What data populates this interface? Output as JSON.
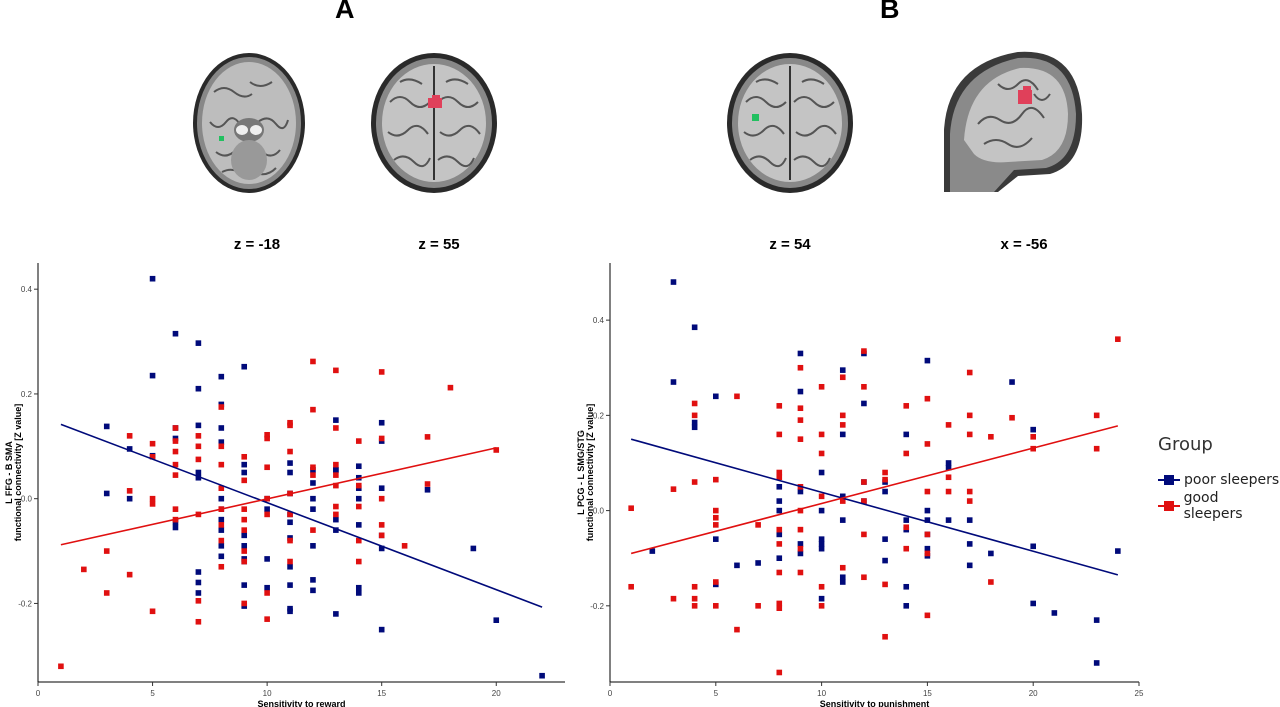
{
  "panels": [
    {
      "letter": "A",
      "slice_labels": [
        "z = -18",
        "z = 55"
      ]
    },
    {
      "letter": "B",
      "slice_labels": [
        "z = 54",
        "x = -56"
      ]
    }
  ],
  "legend": {
    "title": "Group",
    "entries": [
      {
        "label": "poor sleepers",
        "color": "#000a7a"
      },
      {
        "label": "good sleepers",
        "color": "#e01010"
      }
    ]
  },
  "chart_data": [
    {
      "type": "scatter",
      "title": "",
      "xlabel": "Sensitivity to reward",
      "ylabel": [
        "L FFG - B SMA",
        "functional connectivity [Z value]"
      ],
      "xlim": [
        0,
        23
      ],
      "ylim": [
        -0.35,
        0.45
      ],
      "xticks": [
        0,
        5,
        10,
        15,
        20
      ],
      "yticks": [
        -0.2,
        0.0,
        0.2,
        0.4
      ],
      "ytick_labels": [
        "-0.2",
        "0.0",
        "0.2",
        "0.4"
      ],
      "grid": false,
      "series": [
        {
          "name": "poor sleepers",
          "color": "#000a7a",
          "trend": [
            [
              1,
              0.142
            ],
            [
              22,
              -0.207
            ]
          ],
          "x": [
            3,
            3,
            4,
            4,
            5,
            5,
            5,
            6,
            6,
            6,
            6,
            6,
            7,
            7,
            7,
            7,
            7,
            7,
            7,
            7,
            8,
            8,
            8,
            8,
            8,
            8,
            8,
            8,
            8,
            8,
            9,
            9,
            9,
            9,
            9,
            9,
            9,
            9,
            9,
            10,
            10,
            10,
            10,
            11,
            11,
            11,
            11,
            11,
            11,
            11,
            11,
            11,
            11,
            12,
            12,
            12,
            12,
            12,
            12,
            12,
            13,
            13,
            13,
            13,
            13,
            13,
            14,
            14,
            14,
            14,
            14,
            14,
            14,
            15,
            15,
            15,
            15,
            15,
            15,
            17,
            19,
            20,
            22
          ],
          "y": [
            0.138,
            0.01,
            0.095,
            0.0,
            0.42,
            0.235,
            0.082,
            0.315,
            0.135,
            0.115,
            -0.045,
            -0.055,
            0.297,
            0.21,
            0.14,
            0.05,
            0.04,
            -0.14,
            -0.16,
            -0.18,
            0.233,
            0.18,
            0.135,
            0.108,
            0.0,
            -0.02,
            -0.04,
            -0.06,
            -0.09,
            -0.11,
            0.252,
            0.065,
            0.05,
            -0.07,
            -0.09,
            -0.115,
            -0.12,
            -0.165,
            -0.205,
            0.0,
            -0.02,
            -0.115,
            -0.17,
            0.068,
            0.05,
            0.01,
            -0.03,
            -0.045,
            -0.075,
            -0.13,
            -0.165,
            -0.21,
            -0.215,
            0.055,
            0.03,
            0.0,
            -0.02,
            -0.09,
            -0.155,
            -0.175,
            0.15,
            0.055,
            0.055,
            -0.04,
            -0.06,
            -0.22,
            0.062,
            0.04,
            0.02,
            0.0,
            -0.05,
            -0.17,
            -0.18,
            0.145,
            0.11,
            0.02,
            -0.07,
            -0.095,
            -0.25,
            0.017,
            -0.095,
            -0.232,
            -0.338
          ]
        },
        {
          "name": "good sleepers",
          "color": "#e01010",
          "trend": [
            [
              1,
              -0.088
            ],
            [
              20,
              0.097
            ]
          ],
          "x": [
            1,
            2,
            3,
            3,
            4,
            4,
            4,
            5,
            5,
            5,
            5,
            5,
            6,
            6,
            6,
            6,
            6,
            6,
            6,
            7,
            7,
            7,
            7,
            7,
            7,
            8,
            8,
            8,
            8,
            8,
            8,
            8,
            8,
            9,
            9,
            9,
            9,
            9,
            9,
            9,
            9,
            10,
            10,
            10,
            10,
            10,
            10,
            10,
            11,
            11,
            11,
            11,
            11,
            11,
            11,
            12,
            12,
            12,
            12,
            12,
            13,
            13,
            13,
            13,
            13,
            13,
            13,
            14,
            14,
            14,
            14,
            14,
            15,
            15,
            15,
            15,
            15,
            16,
            17,
            17,
            18,
            20
          ],
          "y": [
            -0.32,
            -0.135,
            -0.1,
            -0.18,
            0.12,
            0.015,
            -0.145,
            0.105,
            0.08,
            0.0,
            -0.01,
            -0.215,
            0.135,
            0.11,
            0.09,
            0.065,
            0.045,
            -0.02,
            -0.04,
            0.12,
            0.1,
            0.075,
            -0.03,
            -0.195,
            -0.235,
            0.175,
            0.1,
            0.065,
            0.02,
            -0.02,
            -0.05,
            -0.08,
            -0.13,
            0.08,
            0.035,
            -0.02,
            -0.04,
            -0.06,
            -0.1,
            -0.12,
            -0.2,
            0.122,
            0.115,
            0.06,
            0.0,
            -0.03,
            -0.18,
            -0.23,
            0.145,
            0.14,
            0.09,
            0.01,
            -0.03,
            -0.08,
            -0.12,
            0.262,
            0.17,
            0.06,
            0.045,
            -0.06,
            0.245,
            0.135,
            0.065,
            0.045,
            0.025,
            -0.015,
            -0.03,
            0.11,
            0.025,
            -0.015,
            -0.08,
            -0.12,
            0.242,
            0.115,
            0.0,
            -0.05,
            -0.07,
            -0.09,
            0.118,
            0.028,
            0.212,
            0.093
          ]
        }
      ]
    },
    {
      "type": "scatter",
      "title": "",
      "xlabel": "Sensitivity to punishment",
      "ylabel": [
        "L PCG - L SMG/STG",
        "functional connectivity [Z value]"
      ],
      "xlim": [
        0,
        25
      ],
      "ylim": [
        -0.36,
        0.52
      ],
      "xticks": [
        0,
        5,
        10,
        15,
        20,
        25
      ],
      "yticks": [
        -0.2,
        0.0,
        0.2,
        0.4
      ],
      "ytick_labels": [
        "-0.2",
        "0.0",
        "0.2",
        "0.4"
      ],
      "grid": false,
      "series": [
        {
          "name": "poor sleepers",
          "color": "#000a7a",
          "trend": [
            [
              1,
              0.15
            ],
            [
              24,
              -0.135
            ]
          ],
          "x": [
            2,
            3,
            3,
            4,
            4,
            4,
            5,
            5,
            5,
            6,
            7,
            8,
            8,
            8,
            8,
            8,
            9,
            9,
            9,
            9,
            9,
            10,
            10,
            10,
            10,
            10,
            10,
            11,
            11,
            11,
            11,
            11,
            11,
            12,
            12,
            12,
            12,
            13,
            13,
            13,
            13,
            14,
            14,
            14,
            14,
            14,
            15,
            15,
            15,
            15,
            15,
            15,
            16,
            16,
            16,
            17,
            17,
            17,
            18,
            19,
            20,
            20,
            20,
            21,
            23,
            23,
            24
          ],
          "y": [
            -0.085,
            0.48,
            0.27,
            0.385,
            0.185,
            0.175,
            0.24,
            -0.06,
            -0.155,
            -0.115,
            -0.11,
            0.05,
            0.02,
            0.0,
            -0.05,
            -0.1,
            0.33,
            0.25,
            0.04,
            -0.07,
            -0.09,
            0.08,
            0.0,
            -0.06,
            -0.07,
            -0.08,
            -0.185,
            0.295,
            0.16,
            0.03,
            -0.02,
            -0.14,
            -0.15,
            0.33,
            0.225,
            0.06,
            0.02,
            0.06,
            0.04,
            -0.06,
            -0.105,
            0.16,
            -0.02,
            -0.04,
            -0.16,
            -0.2,
            0.315,
            0.0,
            -0.02,
            -0.05,
            -0.08,
            -0.095,
            0.1,
            0.09,
            -0.02,
            -0.02,
            -0.07,
            -0.115,
            -0.09,
            0.27,
            0.17,
            -0.075,
            -0.195,
            -0.215,
            -0.23,
            -0.32,
            -0.085
          ]
        },
        {
          "name": "good sleepers",
          "color": "#e01010",
          "trend": [
            [
              1,
              -0.09
            ],
            [
              24,
              0.178
            ]
          ],
          "x": [
            1,
            1,
            3,
            3,
            4,
            4,
            4,
            4,
            4,
            4,
            5,
            5,
            5,
            5,
            5,
            5,
            6,
            6,
            7,
            7,
            8,
            8,
            8,
            8,
            8,
            8,
            8,
            8,
            8,
            8,
            9,
            9,
            9,
            9,
            9,
            9,
            9,
            9,
            9,
            10,
            10,
            10,
            10,
            10,
            10,
            11,
            11,
            11,
            11,
            11,
            12,
            12,
            12,
            12,
            12,
            12,
            13,
            13,
            13,
            13,
            14,
            14,
            14,
            14,
            15,
            15,
            15,
            15,
            15,
            15,
            16,
            16,
            16,
            17,
            17,
            17,
            17,
            17,
            18,
            18,
            19,
            20,
            20,
            23,
            23,
            24
          ],
          "y": [
            0.005,
            -0.16,
            0.045,
            -0.185,
            0.225,
            0.2,
            0.06,
            -0.16,
            -0.185,
            -0.2,
            0.065,
            0.0,
            -0.015,
            -0.03,
            -0.15,
            -0.2,
            0.24,
            -0.25,
            -0.03,
            -0.2,
            0.22,
            0.16,
            0.08,
            0.07,
            -0.04,
            -0.07,
            -0.13,
            -0.195,
            -0.205,
            -0.34,
            0.3,
            0.215,
            0.19,
            0.15,
            0.05,
            0.0,
            -0.04,
            -0.08,
            -0.13,
            0.26,
            0.16,
            0.12,
            0.03,
            -0.16,
            -0.2,
            0.28,
            0.2,
            0.18,
            0.02,
            -0.12,
            0.335,
            0.26,
            0.06,
            0.02,
            -0.05,
            -0.14,
            0.08,
            0.065,
            -0.155,
            -0.265,
            0.22,
            0.12,
            -0.035,
            -0.08,
            0.235,
            0.14,
            0.04,
            -0.05,
            -0.09,
            -0.22,
            0.18,
            0.07,
            0.04,
            0.29,
            0.2,
            0.16,
            0.04,
            0.02,
            0.155,
            -0.15,
            0.195,
            0.155,
            0.13,
            0.2,
            0.13,
            0.36
          ]
        }
      ]
    }
  ]
}
